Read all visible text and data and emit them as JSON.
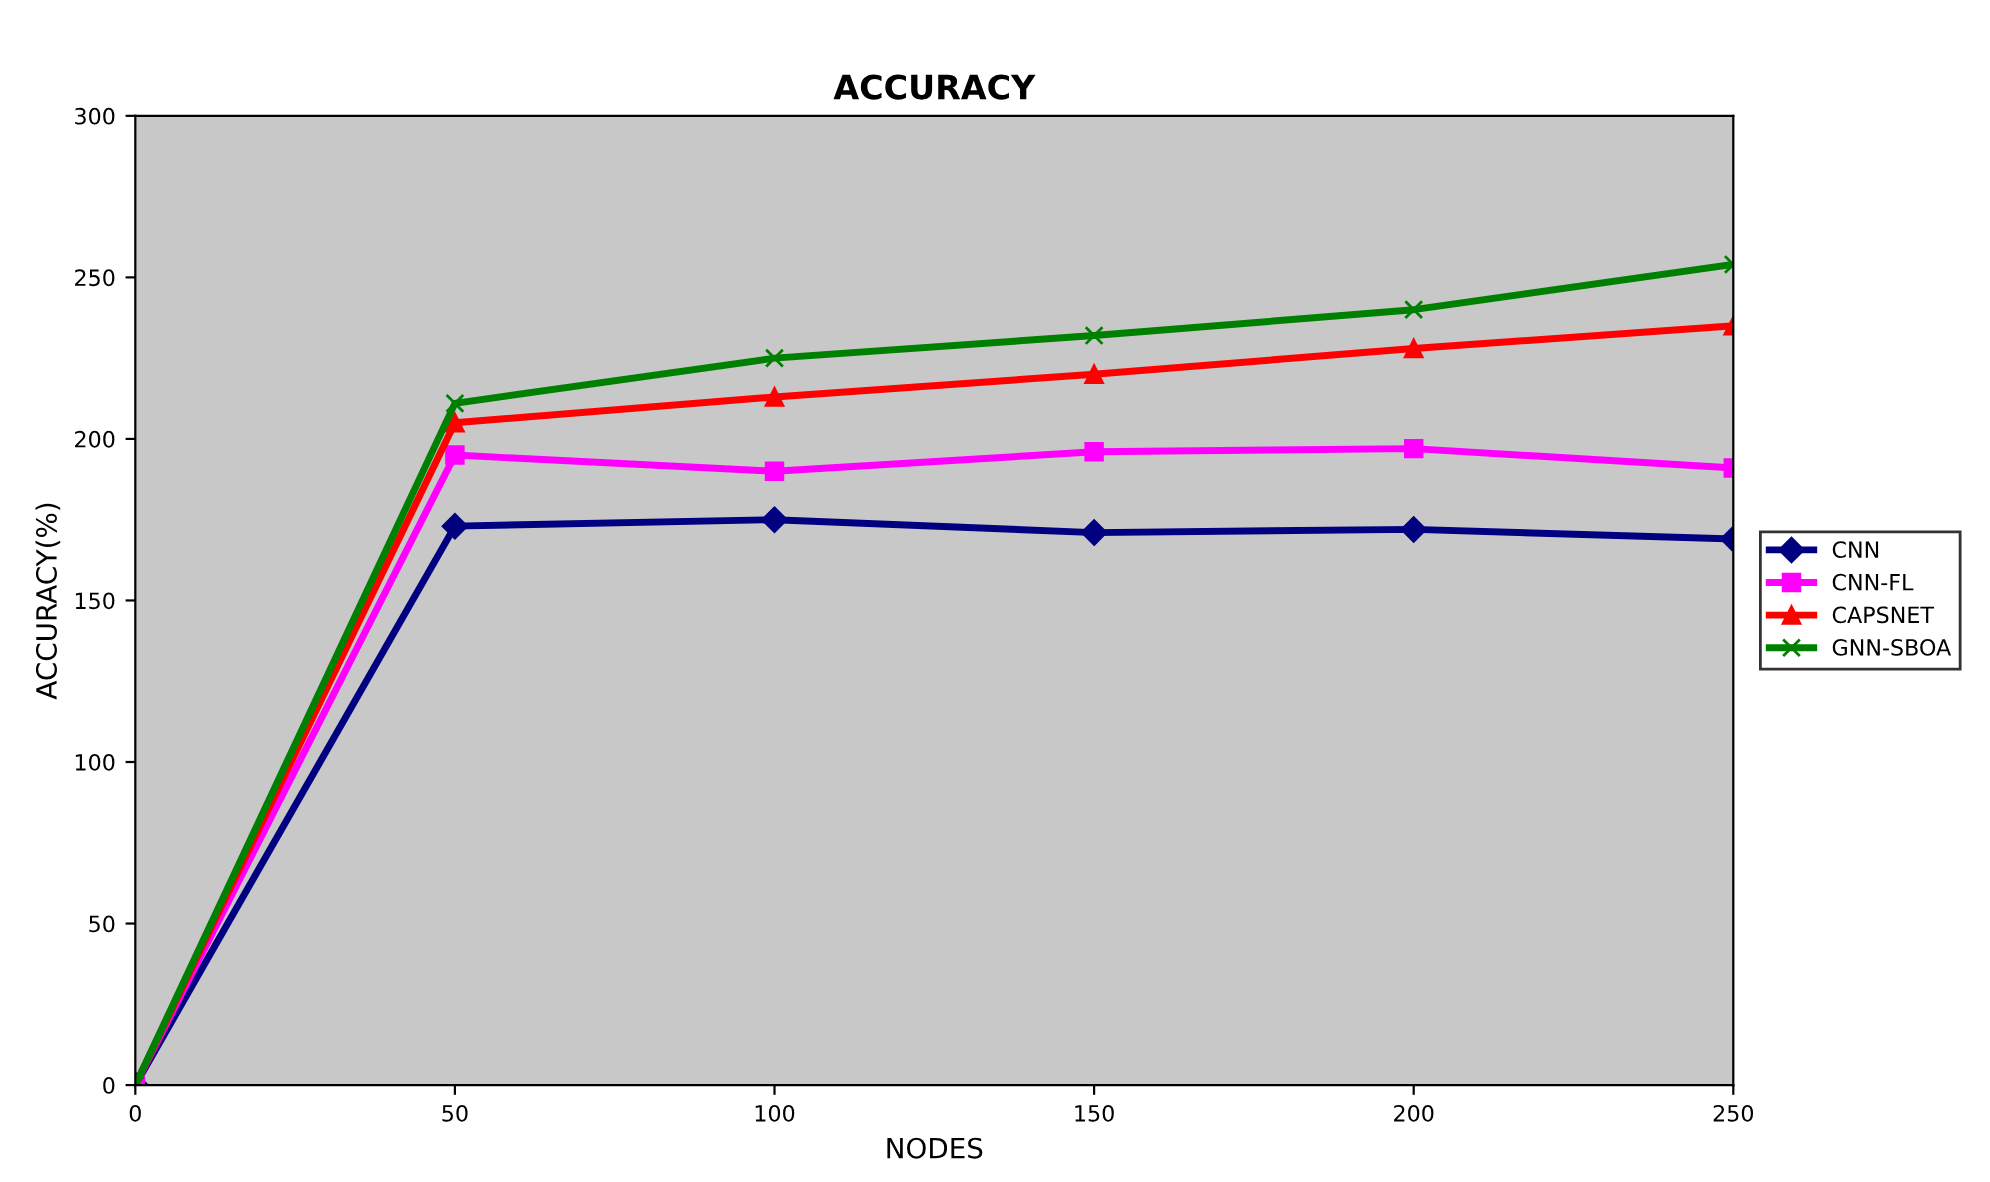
{
  "chart_data": {
    "type": "line",
    "title": "ACCURACY",
    "xlabel": "NODES",
    "ylabel": "ACCURACY(%)",
    "x": [
      0,
      50,
      100,
      150,
      200,
      250
    ],
    "series": [
      {
        "name": "CNN",
        "color": "#000080",
        "marker": "diamond",
        "values": [
          0,
          173,
          175,
          171,
          172,
          169
        ]
      },
      {
        "name": "CNN-FL",
        "color": "#ff00ff",
        "marker": "square",
        "values": [
          0,
          195,
          190,
          196,
          197,
          191
        ]
      },
      {
        "name": "CAPSNET",
        "color": "#ff0000",
        "marker": "triangle",
        "values": [
          0,
          205,
          213,
          220,
          228,
          235
        ]
      },
      {
        "name": "GNN-SBOA",
        "color": "#008000",
        "marker": "cross",
        "values": [
          0,
          211,
          225,
          232,
          240,
          254
        ]
      }
    ],
    "xlim": [
      0,
      250
    ],
    "xticks": [
      0,
      50,
      100,
      150,
      200,
      250
    ],
    "ylim": [
      0,
      300
    ],
    "yticks": [
      0,
      50,
      100,
      150,
      200,
      250,
      300
    ],
    "grid": false,
    "legend": "right",
    "line_style": "solid"
  }
}
